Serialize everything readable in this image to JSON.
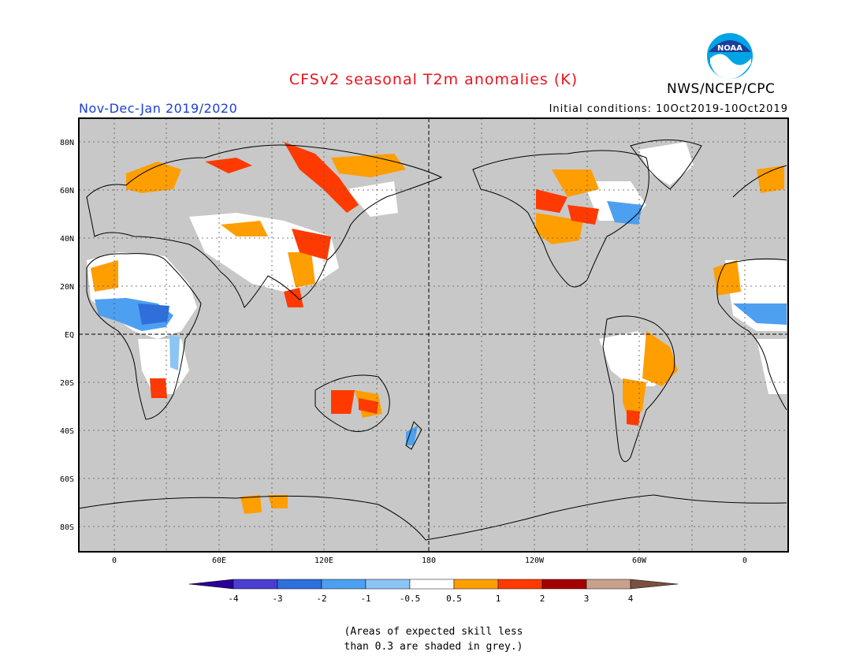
{
  "header": {
    "title": "CFSv2 seasonal T2m anomalies (K)",
    "period": "Nov-Dec-Jan 2019/2020",
    "initial_conditions": "Initial conditions: 10Oct2019-10Oct2019",
    "agency": "NWS/NCEP/CPC",
    "logo_text": "NOAA"
  },
  "map": {
    "projection": "equirectangular",
    "background_color": "#c8c8c8",
    "lat_labels": [
      "80N",
      "60N",
      "40N",
      "20N",
      "EQ",
      "20S",
      "40S",
      "60S",
      "80S"
    ],
    "lon_labels": [
      "0",
      "60E",
      "120E",
      "180",
      "120W",
      "60W",
      "0"
    ],
    "grid": "dotted every 20 degrees, dashed equator and dateline"
  },
  "colorbar": {
    "labels": [
      "-4",
      "-3",
      "-2",
      "-1",
      "-0.5",
      "0.5",
      "1",
      "2",
      "3",
      "4"
    ],
    "colors": [
      "#2a0096",
      "#4a3fd0",
      "#2e6fdc",
      "#4d9ff0",
      "#8cc4f5",
      "#ffffff",
      "#ff9e00",
      "#ff3a00",
      "#a50000",
      "#c9a08c",
      "#7a5040"
    ]
  },
  "note": {
    "line1": "(Areas of expected skill less",
    "line2": "than 0.3 are shaded in grey.)"
  }
}
